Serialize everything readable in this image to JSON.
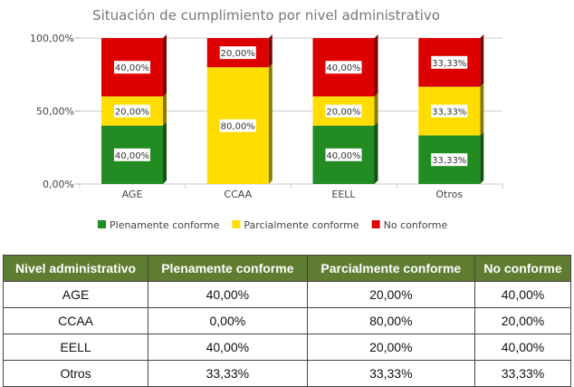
{
  "chart_data": {
    "type": "bar",
    "stacked": true,
    "title": "Situación de cumplimiento por nivel administrativo",
    "categories": [
      "AGE",
      "CCAA",
      "EELL",
      "Otros"
    ],
    "series": [
      {
        "name": "Plenamente conforme",
        "color": "#228b22",
        "values": [
          40,
          0,
          40,
          33.33
        ],
        "labels": [
          "40,00%",
          "",
          "40,00%",
          "33,33%"
        ]
      },
      {
        "name": "Parcialmente conforme",
        "color": "#ffdd00",
        "values": [
          20,
          80,
          20,
          33.33
        ],
        "labels": [
          "20,00%",
          "80,00%",
          "20,00%",
          "33,33%"
        ]
      },
      {
        "name": "No conforme",
        "color": "#dd0000",
        "values": [
          40,
          20,
          40,
          33.33
        ],
        "labels": [
          "40,00%",
          "20,00%",
          "40,00%",
          "33,33%"
        ]
      }
    ],
    "ylim": [
      0,
      100
    ],
    "yticks": [
      "0,00%",
      "50,00%",
      "100,00%"
    ],
    "grid": true,
    "legend": "bottom"
  },
  "table": {
    "headers": [
      "Nivel administrativo",
      "Plenamente conforme",
      "Parcialmente conforme",
      "No conforme"
    ],
    "rows": [
      [
        "AGE",
        "40,00%",
        "20,00%",
        "40,00%"
      ],
      [
        "CCAA",
        "0,00%",
        "80,00%",
        "20,00%"
      ],
      [
        "EELL",
        "40,00%",
        "20,00%",
        "40,00%"
      ],
      [
        "Otros",
        "33,33%",
        "33,33%",
        "33,33%"
      ]
    ]
  }
}
